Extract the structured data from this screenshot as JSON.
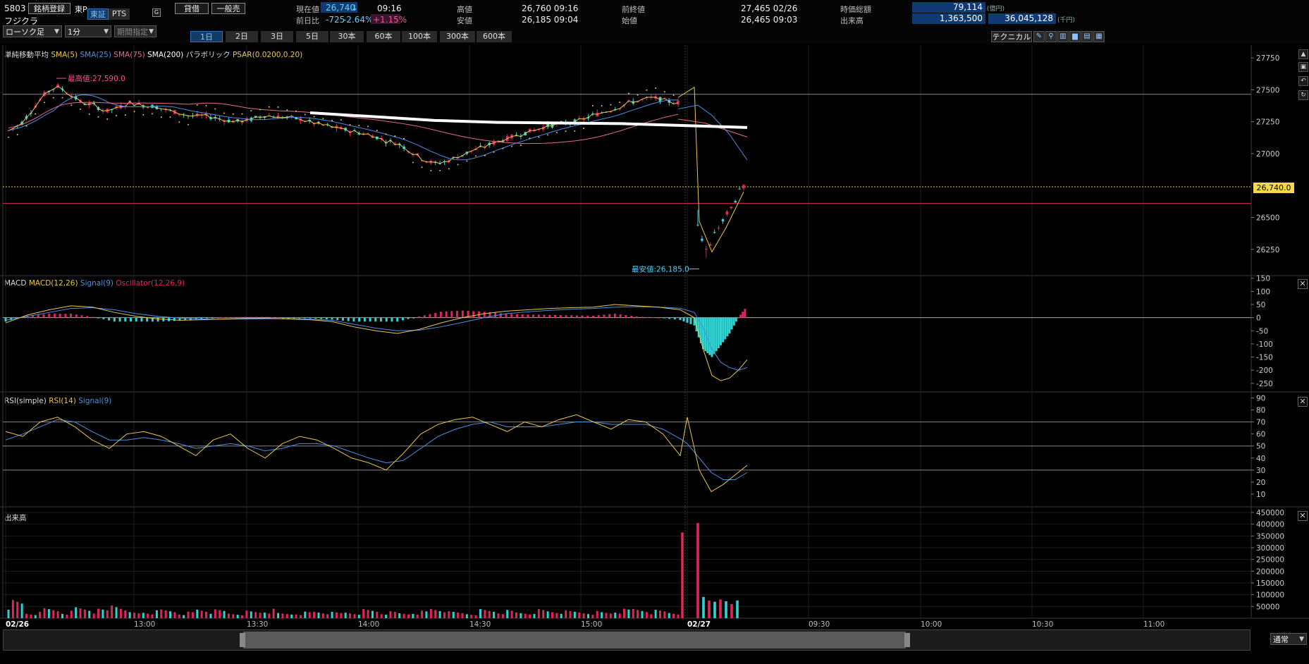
{
  "header": {
    "code": "5803",
    "name": "フジクラ",
    "register_button": "銘柄登録",
    "market": "東P",
    "tab_tosho": "東証",
    "tab_pts": "PTS",
    "g_label": "G",
    "lend_button": "貸借",
    "general_sell_button": "一般売",
    "current_label": "現在値",
    "current_value": "26,740",
    "current_arrow": "↓",
    "current_time": "09:16",
    "prev_diff_label": "前日比",
    "diff_value": "-725",
    "diff_pct": "-2.64%",
    "diff_pct2": "+1.15%",
    "high_label": "高値",
    "high_value": "26,760 09:16",
    "low_label": "安値",
    "low_value": "26,185 09:04",
    "prev_close_label": "前終値",
    "prev_close_value": "27,465 02/26",
    "open_label": "始値",
    "open_value": "26,465 09:03",
    "mcap_label": "時価総額",
    "mcap_value": "79,114",
    "mcap_unit": "(億円)",
    "volume_label": "出来高",
    "volume_value": "1,363,500",
    "turnover_value": "36,045,128",
    "turnover_unit": "(千円)"
  },
  "toolbar": {
    "chart_type": "ローソク足",
    "interval": "1分",
    "period": "期間指定",
    "ranges": [
      "1日",
      "2日",
      "3日",
      "5日",
      "30本",
      "60本",
      "100本",
      "300本",
      "600本"
    ],
    "active_range": "1日",
    "technical_button": "テクニカル"
  },
  "price_panel": {
    "legend": {
      "title": "単純移動平均",
      "sma5": "SMA(5)",
      "sma25": "SMA(25)",
      "sma75": "SMA(75)",
      "sma200": "SMA(200)",
      "parabolic": "パラボリック",
      "psar": "PSAR(0.0200,0.20)"
    },
    "high_annotation": "最高値:27,590.0",
    "low_annotation": "最安値:26,185.0",
    "current_price_tag": "26,740.0",
    "ticks": [
      "27750",
      "27500",
      "27250",
      "27000",
      "26500",
      "26250"
    ]
  },
  "macd_panel": {
    "legend": {
      "title": "MACD",
      "macd": "MACD(12,26)",
      "signal": "Signal(9)",
      "osc": "Oscillator(12,26,9)"
    },
    "ticks": [
      "150",
      "100",
      "50",
      "0",
      "-50",
      "-100",
      "-150",
      "-200",
      "-250"
    ]
  },
  "rsi_panel": {
    "legend": {
      "title": "RSI(simple)",
      "rsi": "RSI(14)",
      "signal": "Signal(9)"
    },
    "ticks": [
      "90",
      "80",
      "70",
      "60",
      "50",
      "40",
      "30",
      "20",
      "10"
    ]
  },
  "volume_panel": {
    "legend": {
      "title": "出来高"
    },
    "ticks": [
      "450000",
      "400000",
      "350000",
      "300000",
      "250000",
      "200000",
      "150000",
      "100000",
      "50000"
    ]
  },
  "x_axis": {
    "labels": [
      "02/26",
      "13:00",
      "13:30",
      "14:00",
      "14:30",
      "15:00",
      "02/27",
      "09:30",
      "10:00",
      "10:30",
      "11:00"
    ]
  },
  "footer": {
    "mode_select": "通常"
  },
  "colors": {
    "up": "#e0245e",
    "down": "#2ed3d3",
    "sma5": "#e8c74a",
    "sma25": "#4a90e2",
    "sma75": "#e86a8a",
    "sma200": "#ffffff",
    "psar": "#e8c74a",
    "accent_blue": "#0f3a73"
  },
  "chart_data": [
    {
      "type": "candlestick",
      "title": "",
      "x_range": [
        "02/26 12:30",
        "02/27 11:15"
      ],
      "y_range": [
        26050,
        27850
      ],
      "annotations": {
        "high": 27590.0,
        "low": 26185.0,
        "current": 26740.0,
        "prev_close": 27465,
        "open": 26465
      },
      "session1_levels": [
        27180,
        27230,
        27350,
        27470,
        27530,
        27470,
        27400,
        27380,
        27330,
        27360,
        27400,
        27380,
        27370,
        27340,
        27320,
        27290,
        27300,
        27280,
        27260,
        27250,
        27270,
        27300,
        27290,
        27280,
        27270,
        27240,
        27220,
        27200,
        27180,
        27160,
        27140,
        27100,
        27080,
        27020,
        26960,
        26920,
        26940,
        26980,
        27020,
        27050,
        27090,
        27120,
        27150,
        27180,
        27210,
        27230,
        27240,
        27260,
        27300,
        27330,
        27360,
        27400,
        27420,
        27440,
        27410,
        27400
      ],
      "session2_levels": [
        26450,
        26300,
        26230,
        26350,
        26420,
        26480,
        26560,
        26600,
        26700,
        26740
      ],
      "sma200_levels": [
        27320,
        27290,
        27260,
        27245,
        27240,
        27235,
        27220,
        27205
      ],
      "grid": true
    },
    {
      "type": "line",
      "title": "",
      "y_range": [
        -280,
        160
      ],
      "series_macd": [
        -20,
        10,
        30,
        45,
        40,
        20,
        5,
        -5,
        -10,
        -8,
        -5,
        -3,
        -2,
        -5,
        -8,
        -15,
        -35,
        -50,
        -60,
        -45,
        -20,
        0,
        15,
        25,
        30,
        35,
        38,
        40,
        50,
        45,
        40,
        30,
        0,
        -120,
        -220,
        -240,
        -230,
        -200,
        -160
      ],
      "series_signal": [
        -10,
        5,
        20,
        35,
        38,
        30,
        15,
        5,
        -2,
        -5,
        -6,
        -5,
        -4,
        -4,
        -6,
        -10,
        -25,
        -40,
        -50,
        -48,
        -35,
        -18,
        0,
        15,
        22,
        28,
        32,
        35,
        40,
        42,
        40,
        36,
        20,
        -40,
        -120,
        -170,
        -190,
        -200,
        -190
      ]
    },
    {
      "type": "line",
      "title": "",
      "y_range": [
        0,
        95
      ],
      "levels": [
        30,
        50,
        70
      ],
      "series_rsi": [
        62,
        58,
        70,
        74,
        66,
        55,
        48,
        60,
        62,
        58,
        50,
        42,
        55,
        60,
        48,
        40,
        52,
        58,
        55,
        48,
        40,
        36,
        30,
        44,
        60,
        68,
        72,
        74,
        68,
        62,
        70,
        66,
        72,
        76,
        70,
        64,
        72,
        70,
        60,
        42,
        74,
        30,
        12,
        18,
        26,
        34
      ],
      "series_signal": [
        55,
        60,
        66,
        72,
        70,
        62,
        55,
        55,
        57,
        55,
        52,
        48,
        50,
        52,
        50,
        46,
        48,
        52,
        52,
        50,
        45,
        40,
        36,
        38,
        48,
        58,
        64,
        68,
        70,
        66,
        66,
        66,
        68,
        70,
        70,
        68,
        68,
        68,
        64,
        56,
        52,
        40,
        28,
        22,
        22,
        28
      ]
    },
    {
      "type": "bar",
      "title": "",
      "y_range": [
        0,
        450000
      ],
      "values": [
        60000,
        20000,
        35000,
        25000,
        40000,
        30000,
        55000,
        20000,
        25000,
        30000,
        22000,
        35000,
        28000,
        20000,
        25000,
        30000,
        18000,
        22000,
        26000,
        20000,
        24000,
        30000,
        22000,
        19000,
        25000,
        38000,
        22000,
        20000,
        30000,
        26000,
        22000,
        30000,
        28000,
        25000,
        24000,
        22000,
        30000,
        36000,
        28000,
        24000,
        365000,
        10000,
        405000,
        90000,
        75000,
        70000,
        80000,
        72000,
        60000,
        75000
      ],
      "grid": true
    }
  ]
}
